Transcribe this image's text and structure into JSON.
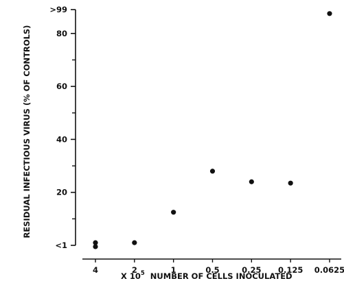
{
  "chart_data": {
    "type": "scatter",
    "title": "",
    "xlabel_prefix": "X 10",
    "xlabel_exponent": "5",
    "xlabel_text": "NUMBER OF CELLS INOCULATED",
    "ylabel": "RESIDUAL INFECTIOUS VIRUS (% OF CONTROLS)",
    "x_ticks": [
      "4",
      "2",
      "1",
      "0.5",
      "0.25",
      "0.125",
      "0.0625"
    ],
    "y_ticks": [
      {
        "label": "<1",
        "value": 0
      },
      {
        "label": "20",
        "value": 20
      },
      {
        "label": "40",
        "value": 40
      },
      {
        "label": "60",
        "value": 60
      },
      {
        "label": "80",
        "value": 80
      },
      {
        "label": ">99",
        "value": 89
      }
    ],
    "ylim": [
      0,
      89
    ],
    "grid": false,
    "series": [
      {
        "points": [
          {
            "x": "4",
            "y": 1.0
          },
          {
            "x": "4",
            "y": -0.5
          },
          {
            "x": "2",
            "y": 1.0
          },
          {
            "x": "1",
            "y": 12.5
          },
          {
            "x": "0.5",
            "y": 28
          },
          {
            "x": "0.25",
            "y": 24
          },
          {
            "x": "0.125",
            "y": 23.5
          },
          {
            "x": "0.0625",
            "y": 87.5
          }
        ]
      }
    ]
  }
}
